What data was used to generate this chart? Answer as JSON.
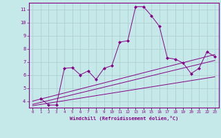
{
  "xlabel": "Windchill (Refroidissement éolien,°C)",
  "background_color": "#c5e8e8",
  "line_color": "#880088",
  "grid_color": "#aacccc",
  "ylim": [
    3.5,
    11.5
  ],
  "xlim": [
    -0.5,
    23.5
  ],
  "yticks": [
    4,
    5,
    6,
    7,
    8,
    9,
    10,
    11
  ],
  "xticks": [
    0,
    1,
    2,
    3,
    4,
    5,
    6,
    7,
    8,
    9,
    10,
    11,
    12,
    13,
    14,
    15,
    16,
    17,
    18,
    19,
    20,
    21,
    22,
    23
  ],
  "series1_x": [
    1,
    2,
    3,
    4,
    5,
    6,
    7,
    8,
    9,
    10,
    11,
    12,
    13,
    14,
    15,
    16,
    17,
    18,
    19,
    20,
    21,
    22,
    23
  ],
  "series1_y": [
    4.2,
    3.7,
    3.7,
    6.5,
    6.55,
    6.0,
    6.3,
    5.65,
    6.5,
    6.7,
    8.5,
    8.6,
    11.2,
    11.2,
    10.5,
    9.7,
    7.3,
    7.2,
    6.9,
    6.1,
    6.5,
    7.75,
    7.4
  ],
  "series2_x": [
    0,
    23
  ],
  "series2_y": [
    3.75,
    7.1
  ],
  "series3_x": [
    0,
    23
  ],
  "series3_y": [
    3.65,
    5.85
  ],
  "series4_x": [
    0,
    23
  ],
  "series4_y": [
    4.0,
    7.55
  ]
}
